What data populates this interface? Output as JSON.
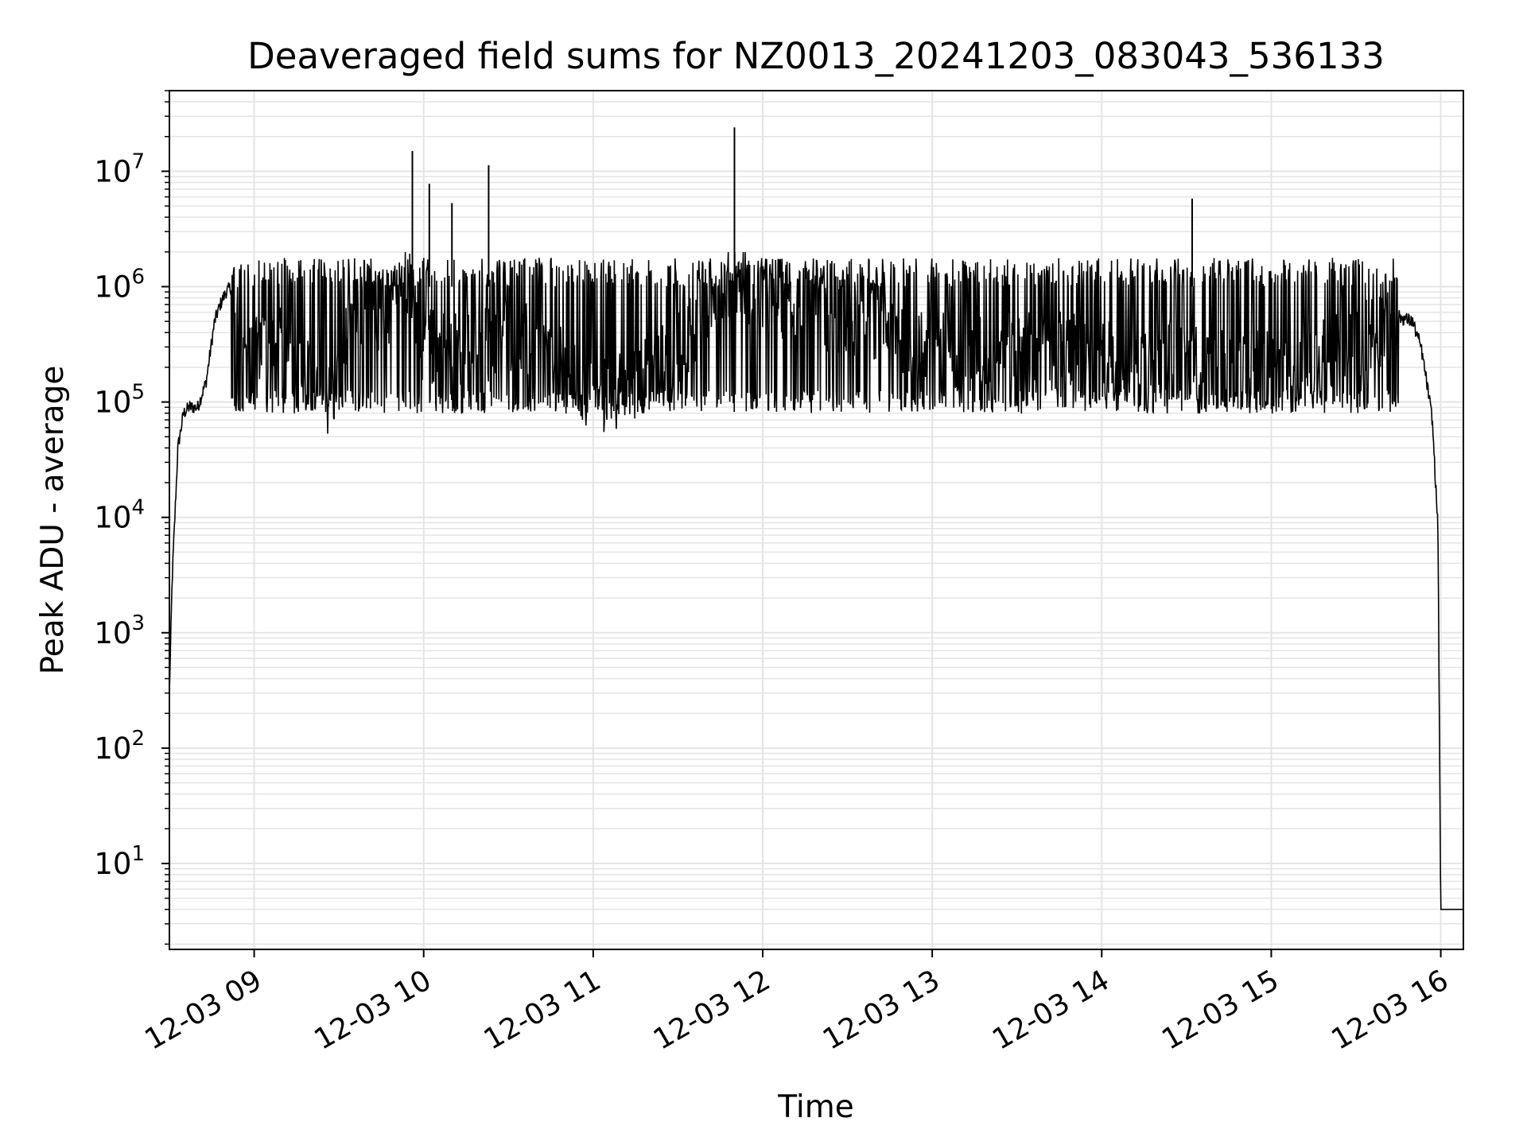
{
  "chart_data": {
    "type": "line",
    "title": "Deaveraged field sums for NZ0013_20241203_083043_536133",
    "xlabel": "Time",
    "ylabel": "Peak ADU - average",
    "x_ticks": [
      "12-03 09",
      "12-03 10",
      "12-03 11",
      "12-03 12",
      "12-03 13",
      "12-03 14",
      "12-03 15",
      "12-03 16"
    ],
    "y_ticks": [
      {
        "base": "10",
        "exp": "1"
      },
      {
        "base": "10",
        "exp": "2"
      },
      {
        "base": "10",
        "exp": "3"
      },
      {
        "base": "10",
        "exp": "4"
      },
      {
        "base": "10",
        "exp": "5"
      },
      {
        "base": "10",
        "exp": "6"
      },
      {
        "base": "10",
        "exp": "7"
      }
    ],
    "yscale": "log",
    "xlim": [
      "2024-12-03 08:30",
      "2024-12-03 16:08"
    ],
    "ylim": [
      1.8,
      50000000
    ],
    "grid": true,
    "line_color": "#000000",
    "series": [
      {
        "x": [
          "2024-12-03 08:30",
          "2024-12-03 08:31",
          "2024-12-03 08:33",
          "2024-12-03 08:35",
          "2024-12-03 08:37",
          "2024-12-03 08:40",
          "2024-12-03 08:43",
          "2024-12-03 08:46",
          "2024-12-03 08:48",
          "2024-12-03 08:50",
          "2024-12-03 08:52",
          "2024-12-03 08:55",
          "2024-12-03 09:00",
          "2024-12-03 09:10",
          "2024-12-03 09:20",
          "2024-12-03 09:27",
          "2024-12-03 09:35",
          "2024-12-03 09:45",
          "2024-12-03 09:55",
          "2024-12-03 10:00",
          "2024-12-03 10:10",
          "2024-12-03 10:20",
          "2024-12-03 10:30",
          "2024-12-03 10:45",
          "2024-12-03 11:00",
          "2024-12-03 11:15",
          "2024-12-03 11:30",
          "2024-12-03 11:45",
          "2024-12-03 11:50",
          "2024-12-03 12:00",
          "2024-12-03 12:20",
          "2024-12-03 12:40",
          "2024-12-03 13:00",
          "2024-12-03 13:20",
          "2024-12-03 13:40",
          "2024-12-03 14:00",
          "2024-12-03 14:20",
          "2024-12-03 14:40",
          "2024-12-03 15:00",
          "2024-12-03 15:20",
          "2024-12-03 15:35",
          "2024-12-03 15:45",
          "2024-12-03 15:50",
          "2024-12-03 15:53",
          "2024-12-03 15:55",
          "2024-12-03 15:57",
          "2024-12-03 15:59",
          "2024-12-03 16:00",
          "2024-12-03 16:08"
        ],
        "y": [
          300,
          3000,
          40000,
          80000,
          90000,
          90000,
          150000,
          500000,
          700000,
          900000,
          1000000,
          500000,
          350000,
          300000,
          150000,
          100000,
          600000,
          600000,
          1000000,
          300000,
          300000,
          300000,
          400000,
          250000,
          100000,
          150000,
          300000,
          1000000,
          1200000,
          900000,
          600000,
          500000,
          300000,
          250000,
          300000,
          250000,
          250000,
          200000,
          200000,
          250000,
          400000,
          550000,
          500000,
          300000,
          150000,
          70000,
          8000,
          4,
          4
        ]
      },
      {
        "name": "",
        "spikes_x": [
          "2024-12-03 09:56",
          "2024-12-03 10:02",
          "2024-12-03 10:10",
          "2024-12-03 10:23",
          "2024-12-03 11:50",
          "2024-12-03 14:32"
        ],
        "spikes_y": [
          15000000,
          7800000,
          5300000,
          11300000,
          24000000,
          5800000
        ]
      }
    ]
  }
}
